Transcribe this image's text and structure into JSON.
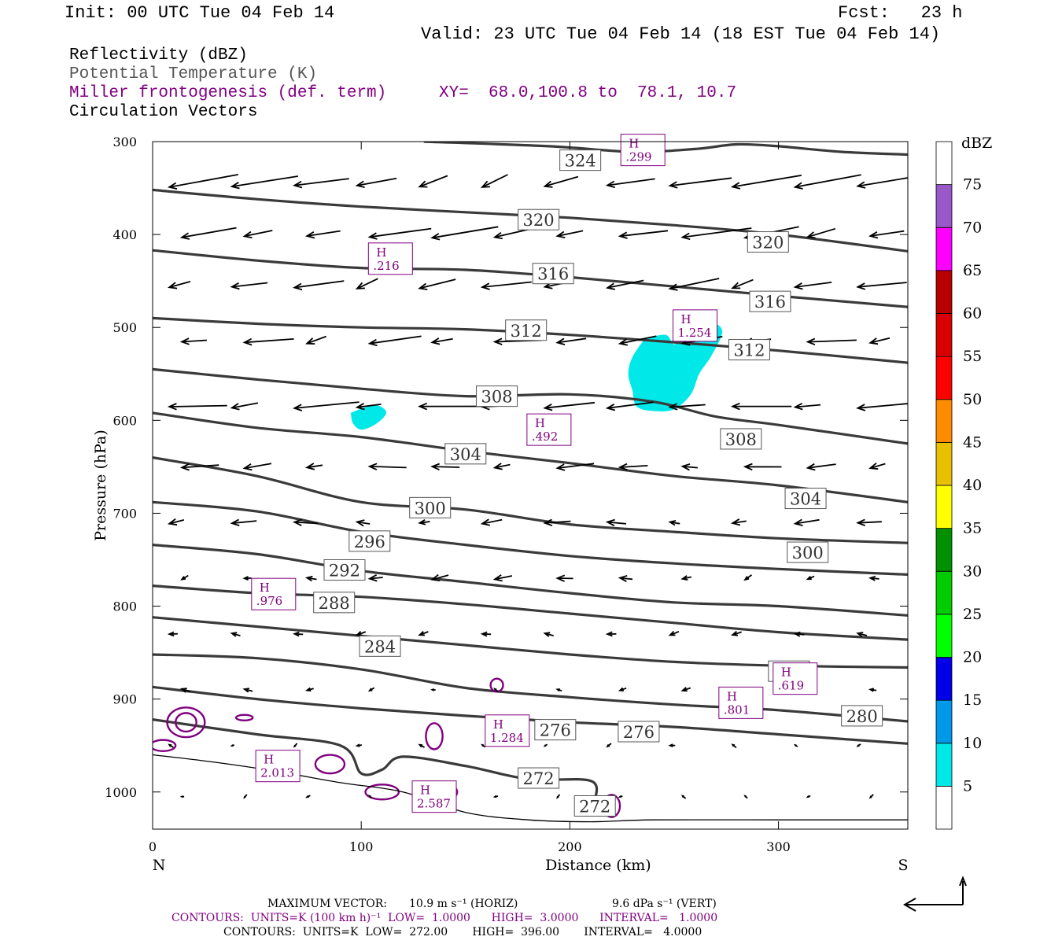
{
  "header": {
    "init": "Init: 00 UTC Tue 04 Feb 14",
    "fcst": "Fcst:   23 h",
    "valid": "Valid: 23 UTC Tue 04 Feb 14 (18 EST Tue 04 Feb 14)"
  },
  "legend": {
    "reflectivity": "Reflectivity (dBZ)",
    "theta": "Potential Temperature (K)",
    "miller": "Miller frontogenesis (def. term)",
    "xy": "XY=  68.0,100.8 to  78.1, 10.7",
    "vectors": "Circulation Vectors"
  },
  "footer": {
    "max_vector_label": "MAXIMUM VECTOR:",
    "max_vector_horiz": "10.9 m s⁻¹ (HORIZ)",
    "max_vector_vert": "9.6 dPa s⁻¹ (VERT)",
    "contours_purple": "CONTOURS:  UNITS=K (100 km h)⁻¹  LOW=  1.0000      HIGH=  3.0000      INTERVAL=   1.0000",
    "contours_black": "CONTOURS:  UNITS=K  LOW=  272.00       HIGH=  396.00       INTERVAL=   4.0000"
  },
  "colors": {
    "theta_line": "#3a3a3a",
    "frontogenesis": "#800080",
    "reflectivity_fill": "#00e8e8",
    "vector": "#000000"
  },
  "chart_data": {
    "type": "cross-section",
    "xlabel": "Distance (km)",
    "ylabel": "Pressure (hPa)",
    "x_ticks": [
      0,
      100,
      200,
      300
    ],
    "y_ticks": [
      300,
      400,
      500,
      600,
      700,
      800,
      900,
      1000
    ],
    "xlim": [
      0,
      362
    ],
    "ylim": [
      300,
      1040
    ],
    "y_reversed": true,
    "left_end_label": "N",
    "right_end_label": "S",
    "colorbar": {
      "title": "dBZ",
      "levels": [
        5,
        10,
        15,
        20,
        25,
        30,
        35,
        40,
        45,
        50,
        55,
        60,
        65,
        70,
        75
      ],
      "colors": [
        "#ffffff",
        "#00e8e8",
        "#0098e8",
        "#0000e8",
        "#00ff00",
        "#00cc00",
        "#009000",
        "#ffff00",
        "#e8c000",
        "#ff8c00",
        "#ff0000",
        "#d80000",
        "#b80000",
        "#ff00ff",
        "#9858c8",
        "#ffffff"
      ]
    },
    "theta_contours": [
      {
        "value": 324,
        "points": [
          [
            130,
            300
          ],
          [
            190,
            305
          ],
          [
            230,
            311
          ],
          [
            260,
            308
          ],
          [
            280,
            303
          ],
          [
            300,
            305
          ],
          [
            330,
            311
          ],
          [
            362,
            314
          ]
        ],
        "labels": [
          [
            205,
            320
          ]
        ]
      },
      {
        "value": 320,
        "points": [
          [
            0,
            352
          ],
          [
            50,
            362
          ],
          [
            100,
            370
          ],
          [
            150,
            376
          ],
          [
            200,
            382
          ],
          [
            250,
            390
          ],
          [
            300,
            400
          ],
          [
            362,
            418
          ]
        ],
        "labels": [
          [
            185,
            384
          ],
          [
            295,
            408
          ]
        ]
      },
      {
        "value": 316,
        "points": [
          [
            0,
            417
          ],
          [
            50,
            428
          ],
          [
            100,
            436
          ],
          [
            150,
            438
          ],
          [
            200,
            446
          ],
          [
            250,
            456
          ],
          [
            300,
            466
          ],
          [
            362,
            478
          ]
        ],
        "labels": [
          [
            192,
            442
          ],
          [
            296,
            472
          ]
        ]
      },
      {
        "value": 312,
        "points": [
          [
            0,
            490
          ],
          [
            50,
            496
          ],
          [
            100,
            500
          ],
          [
            150,
            502
          ],
          [
            200,
            508
          ],
          [
            250,
            516
          ],
          [
            300,
            525
          ],
          [
            362,
            538
          ]
        ],
        "labels": [
          [
            179,
            503
          ],
          [
            286,
            524
          ]
        ]
      },
      {
        "value": 308,
        "points": [
          [
            0,
            545
          ],
          [
            50,
            556
          ],
          [
            100,
            566
          ],
          [
            150,
            574
          ],
          [
            200,
            572
          ],
          [
            240,
            580
          ],
          [
            270,
            596
          ],
          [
            300,
            605
          ],
          [
            362,
            625
          ]
        ],
        "labels": [
          [
            165,
            574
          ],
          [
            282,
            620
          ]
        ]
      },
      {
        "value": 304,
        "points": [
          [
            0,
            592
          ],
          [
            50,
            608
          ],
          [
            100,
            618
          ],
          [
            150,
            633
          ],
          [
            200,
            646
          ],
          [
            250,
            660
          ],
          [
            300,
            670
          ],
          [
            362,
            688
          ]
        ],
        "labels": [
          [
            150,
            636
          ],
          [
            313,
            684
          ]
        ]
      },
      {
        "value": 300,
        "points": [
          [
            0,
            640
          ],
          [
            50,
            660
          ],
          [
            100,
            688
          ],
          [
            150,
            696
          ],
          [
            200,
            712
          ],
          [
            250,
            720
          ],
          [
            300,
            727
          ],
          [
            362,
            732
          ]
        ],
        "labels": [
          [
            133,
            694
          ],
          [
            314,
            742
          ]
        ]
      },
      {
        "value": 296,
        "points": [
          [
            0,
            688
          ],
          [
            50,
            698
          ],
          [
            100,
            720
          ],
          [
            150,
            734
          ],
          [
            200,
            746
          ],
          [
            250,
            754
          ],
          [
            300,
            760
          ],
          [
            362,
            766
          ]
        ],
        "labels": [
          [
            104,
            730
          ]
        ]
      },
      {
        "value": 292,
        "points": [
          [
            0,
            734
          ],
          [
            50,
            744
          ],
          [
            100,
            762
          ],
          [
            150,
            774
          ],
          [
            200,
            786
          ],
          [
            250,
            796
          ],
          [
            300,
            800
          ],
          [
            362,
            810
          ]
        ],
        "labels": [
          [
            92,
            761
          ]
        ]
      },
      {
        "value": 288,
        "points": [
          [
            0,
            778
          ],
          [
            50,
            786
          ],
          [
            100,
            790
          ],
          [
            150,
            798
          ],
          [
            200,
            808
          ],
          [
            250,
            818
          ],
          [
            300,
            828
          ],
          [
            362,
            836
          ]
        ],
        "labels": [
          [
            87,
            796
          ]
        ]
      },
      {
        "value": 284,
        "points": [
          [
            0,
            812
          ],
          [
            50,
            822
          ],
          [
            100,
            832
          ],
          [
            150,
            842
          ],
          [
            200,
            852
          ],
          [
            250,
            860
          ],
          [
            300,
            864
          ],
          [
            362,
            866
          ]
        ],
        "labels": [
          [
            109,
            843
          ],
          [
            305,
            870
          ]
        ]
      },
      {
        "value": 280,
        "points": [
          [
            0,
            852
          ],
          [
            50,
            856
          ],
          [
            100,
            868
          ],
          [
            150,
            888
          ],
          [
            200,
            898
          ],
          [
            250,
            906
          ],
          [
            300,
            912
          ],
          [
            362,
            924
          ]
        ],
        "labels": [
          [
            340,
            918
          ]
        ]
      },
      {
        "value": 276,
        "points": [
          [
            0,
            887
          ],
          [
            50,
            900
          ],
          [
            100,
            910
          ],
          [
            150,
            918
          ],
          [
            200,
            925
          ],
          [
            250,
            930
          ],
          [
            300,
            938
          ],
          [
            362,
            948
          ]
        ],
        "labels": [
          [
            193,
            933
          ],
          [
            233,
            935
          ]
        ]
      },
      {
        "value": 272,
        "points": [
          [
            0,
            922
          ],
          [
            50,
            938
          ],
          [
            90,
            950
          ],
          [
            100,
            980
          ],
          [
            110,
            976
          ],
          [
            120,
            962
          ],
          [
            150,
            972
          ],
          [
            180,
            986
          ],
          [
            210,
            988
          ],
          [
            212,
            1010
          ]
        ],
        "labels": [
          [
            185,
            985
          ],
          [
            212,
            1015
          ]
        ]
      }
    ],
    "frontogenesis_maxima": [
      {
        "label": "H",
        "value": ".299",
        "x": 235,
        "y": 309
      },
      {
        "label": "H",
        "value": ".216",
        "x": 114,
        "y": 426
      },
      {
        "label": "H",
        "value": "1.254",
        "x": 260,
        "y": 498
      },
      {
        "label": "H",
        "value": ".492",
        "x": 190,
        "y": 610
      },
      {
        "label": "H",
        "value": ".976",
        "x": 58,
        "y": 787
      },
      {
        "label": "H",
        "value": ".619",
        "x": 308,
        "y": 878
      },
      {
        "label": "H",
        "value": ".801",
        "x": 282,
        "y": 904
      },
      {
        "label": "H",
        "value": "1.284",
        "x": 170,
        "y": 934
      },
      {
        "label": "H",
        "value": "2.013",
        "x": 60,
        "y": 972
      },
      {
        "label": "H",
        "value": "2.587",
        "x": 135,
        "y": 1005
      }
    ],
    "reflectivity_areas": [
      {
        "dbz": 5,
        "points": [
          [
            236,
            512
          ],
          [
            246,
            508
          ],
          [
            250,
            518
          ],
          [
            256,
            508
          ],
          [
            264,
            496
          ],
          [
            270,
            496
          ],
          [
            273,
            506
          ],
          [
            268,
            530
          ],
          [
            262,
            550
          ],
          [
            258,
            572
          ],
          [
            250,
            588
          ],
          [
            240,
            590
          ],
          [
            232,
            585
          ],
          [
            230,
            568
          ],
          [
            228,
            550
          ],
          [
            230,
            532
          ]
        ]
      },
      {
        "dbz": 5,
        "points": [
          [
            95,
            592
          ],
          [
            102,
            586
          ],
          [
            108,
            584
          ],
          [
            112,
            592
          ],
          [
            107,
            604
          ],
          [
            100,
            610
          ],
          [
            96,
            603
          ]
        ]
      }
    ]
  }
}
